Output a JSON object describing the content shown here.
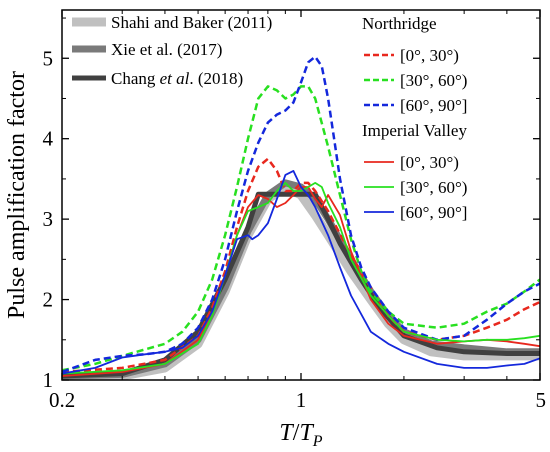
{
  "chart_data": {
    "type": "line",
    "xlabel": "T/T_P",
    "ylabel": "Pulse amplification factor",
    "xscale": "log",
    "xlim": [
      0.2,
      5
    ],
    "ylim": [
      1,
      5.6
    ],
    "xticks": [
      {
        "value": 0.2,
        "label": "0.2"
      },
      {
        "value": 1,
        "label": "1"
      },
      {
        "value": 5,
        "label": "5"
      }
    ],
    "yticks": [
      {
        "value": 1,
        "label": "1"
      },
      {
        "value": 2,
        "label": "2"
      },
      {
        "value": 3,
        "label": "3"
      },
      {
        "value": 4,
        "label": "4"
      },
      {
        "value": 5,
        "label": "5"
      }
    ],
    "grid": false,
    "legend_left": {
      "placement": "top-left",
      "entries": [
        {
          "series": "shahi",
          "text": "Shahi and Baker (2011)"
        },
        {
          "series": "xie",
          "text": "Xie et al. (2017)"
        },
        {
          "series": "chang",
          "text_parts": [
            "Chang ",
            "et al",
            ". (2018)"
          ]
        }
      ]
    },
    "legend_right": {
      "placement": "top-right",
      "groups": [
        {
          "title": "Northridge",
          "entries": [
            {
              "series": "n0",
              "text": "[0°, 30°)"
            },
            {
              "series": "n30",
              "text": "[30°, 60°)"
            },
            {
              "series": "n60",
              "text": "[60°, 90°]"
            }
          ]
        },
        {
          "title": "Imperial Valley",
          "entries": [
            {
              "series": "i0",
              "text": "[0°, 30°)"
            },
            {
              "series": "i30",
              "text": "[30°, 60°)"
            },
            {
              "series": "i60",
              "text": "[60°, 90°]"
            }
          ]
        }
      ]
    },
    "series": [
      {
        "id": "shahi",
        "color": "#c0c0c0",
        "width": 9,
        "dash": "none",
        "x": [
          0.2,
          0.3,
          0.4,
          0.5,
          0.6,
          0.7,
          0.8,
          0.9,
          1.0,
          1.1,
          1.2,
          1.4,
          1.6,
          1.8,
          2.0,
          2.4,
          3.0,
          3.5,
          4.0,
          5.0
        ],
        "y": [
          1.02,
          1.05,
          1.15,
          1.45,
          2.1,
          2.8,
          3.25,
          3.4,
          3.3,
          3.05,
          2.8,
          2.35,
          2.0,
          1.7,
          1.5,
          1.35,
          1.3,
          1.3,
          1.3,
          1.3
        ]
      },
      {
        "id": "xie",
        "color": "#7a7a7a",
        "width": 7,
        "dash": "none",
        "x": [
          0.2,
          0.3,
          0.4,
          0.5,
          0.6,
          0.7,
          0.8,
          0.9,
          1.0,
          1.1,
          1.2,
          1.4,
          1.6,
          1.8,
          2.0,
          2.4,
          3.0,
          4.0,
          5.0
        ],
        "y": [
          1.05,
          1.07,
          1.2,
          1.5,
          2.15,
          2.85,
          3.3,
          3.45,
          3.4,
          3.25,
          3.0,
          2.5,
          2.1,
          1.8,
          1.6,
          1.45,
          1.4,
          1.35,
          1.35
        ]
      },
      {
        "id": "chang",
        "color": "#404040",
        "width": 5,
        "dash": "none",
        "x": [
          0.2,
          0.3,
          0.4,
          0.5,
          0.6,
          0.7,
          0.75,
          0.8,
          0.9,
          1.0,
          1.1,
          1.2,
          1.3,
          1.5,
          1.7,
          2.0,
          2.5,
          3.0,
          4.0,
          5.0
        ],
        "y": [
          1.05,
          1.08,
          1.25,
          1.6,
          2.25,
          2.9,
          3.31,
          3.31,
          3.31,
          3.31,
          3.31,
          3.0,
          2.7,
          2.25,
          1.9,
          1.55,
          1.4,
          1.35,
          1.33,
          1.33
        ]
      },
      {
        "id": "n0",
        "color": "#e8281e",
        "width": 2.5,
        "dash": "7,4",
        "x": [
          0.2,
          0.3,
          0.4,
          0.5,
          0.55,
          0.6,
          0.65,
          0.7,
          0.75,
          0.8,
          0.85,
          0.9,
          0.95,
          1.0,
          1.05,
          1.1,
          1.2,
          1.4,
          1.6,
          1.8,
          2.0,
          2.5,
          3.0,
          3.5,
          4.0,
          4.5,
          5.0
        ],
        "y": [
          1.1,
          1.15,
          1.25,
          1.55,
          1.9,
          2.35,
          2.9,
          3.35,
          3.65,
          3.75,
          3.6,
          3.35,
          3.35,
          3.45,
          3.45,
          3.35,
          3.1,
          2.55,
          2.15,
          1.8,
          1.6,
          1.5,
          1.55,
          1.65,
          1.75,
          1.88,
          1.97
        ]
      },
      {
        "id": "n30",
        "color": "#28e020",
        "width": 2.5,
        "dash": "7,4",
        "x": [
          0.2,
          0.25,
          0.3,
          0.35,
          0.4,
          0.45,
          0.5,
          0.55,
          0.6,
          0.65,
          0.7,
          0.75,
          0.8,
          0.85,
          0.9,
          0.95,
          1.0,
          1.05,
          1.1,
          1.2,
          1.3,
          1.4,
          1.5,
          1.6,
          1.8,
          2.0,
          2.5,
          3.0,
          3.5,
          4.0,
          4.5,
          5.0
        ],
        "y": [
          1.12,
          1.2,
          1.3,
          1.38,
          1.45,
          1.6,
          1.85,
          2.25,
          2.8,
          3.4,
          4.0,
          4.5,
          4.65,
          4.6,
          4.5,
          4.55,
          4.65,
          4.65,
          4.5,
          3.9,
          3.3,
          2.75,
          2.35,
          2.1,
          1.85,
          1.7,
          1.65,
          1.7,
          1.85,
          1.95,
          2.1,
          2.25
        ]
      },
      {
        "id": "n60",
        "color": "#1428dc",
        "width": 2.5,
        "dash": "7,4",
        "x": [
          0.2,
          0.25,
          0.3,
          0.35,
          0.4,
          0.45,
          0.5,
          0.55,
          0.6,
          0.65,
          0.7,
          0.75,
          0.8,
          0.85,
          0.9,
          0.95,
          1.0,
          1.05,
          1.1,
          1.15,
          1.2,
          1.25,
          1.3,
          1.4,
          1.5,
          1.6,
          1.8,
          2.0,
          2.5,
          3.0,
          3.5,
          4.0,
          4.5,
          5.0
        ],
        "y": [
          1.1,
          1.25,
          1.3,
          1.32,
          1.35,
          1.45,
          1.65,
          2.0,
          2.5,
          3.1,
          3.6,
          3.95,
          4.2,
          4.3,
          4.35,
          4.45,
          4.7,
          4.95,
          5.02,
          4.9,
          4.5,
          4.0,
          3.5,
          2.8,
          2.4,
          2.15,
          1.85,
          1.65,
          1.5,
          1.55,
          1.75,
          1.95,
          2.1,
          2.2
        ]
      },
      {
        "id": "i0",
        "color": "#e8281e",
        "width": 1.8,
        "dash": "none",
        "x": [
          0.2,
          0.3,
          0.4,
          0.5,
          0.55,
          0.6,
          0.65,
          0.7,
          0.75,
          0.8,
          0.85,
          0.9,
          0.95,
          1.0,
          1.05,
          1.1,
          1.15,
          1.2,
          1.3,
          1.4,
          1.6,
          1.8,
          2.0,
          2.5,
          3.0,
          3.5,
          4.0,
          4.5,
          5.0
        ],
        "y": [
          1.05,
          1.1,
          1.2,
          1.5,
          1.85,
          2.3,
          2.8,
          3.15,
          3.3,
          3.25,
          3.15,
          3.2,
          3.3,
          3.4,
          3.4,
          3.25,
          3.15,
          3.3,
          3.05,
          2.6,
          2.0,
          1.7,
          1.55,
          1.45,
          1.48,
          1.5,
          1.48,
          1.45,
          1.42
        ]
      },
      {
        "id": "i30",
        "color": "#28e020",
        "width": 1.8,
        "dash": "none",
        "x": [
          0.2,
          0.3,
          0.4,
          0.5,
          0.55,
          0.6,
          0.65,
          0.7,
          0.75,
          0.8,
          0.85,
          0.9,
          0.95,
          1.0,
          1.05,
          1.1,
          1.15,
          1.2,
          1.3,
          1.4,
          1.6,
          1.8,
          2.0,
          2.5,
          3.0,
          3.5,
          4.0,
          4.5,
          5.0
        ],
        "y": [
          1.08,
          1.12,
          1.2,
          1.45,
          1.8,
          2.3,
          2.8,
          3.1,
          3.15,
          3.2,
          3.35,
          3.45,
          3.35,
          3.35,
          3.4,
          3.45,
          3.4,
          3.2,
          2.9,
          2.5,
          2.05,
          1.8,
          1.6,
          1.5,
          1.48,
          1.5,
          1.5,
          1.52,
          1.55
        ]
      },
      {
        "id": "i60",
        "color": "#1428dc",
        "width": 1.8,
        "dash": "none",
        "x": [
          0.2,
          0.25,
          0.3,
          0.35,
          0.4,
          0.45,
          0.5,
          0.55,
          0.6,
          0.65,
          0.7,
          0.72,
          0.75,
          0.8,
          0.85,
          0.9,
          0.95,
          1.0,
          1.05,
          1.1,
          1.2,
          1.3,
          1.4,
          1.6,
          1.8,
          2.0,
          2.5,
          3.0,
          3.5,
          4.0,
          4.5,
          5.0
        ],
        "y": [
          1.08,
          1.15,
          1.28,
          1.32,
          1.35,
          1.4,
          1.55,
          1.85,
          2.3,
          2.75,
          2.8,
          2.75,
          2.8,
          2.95,
          3.25,
          3.55,
          3.6,
          3.4,
          3.3,
          3.15,
          2.8,
          2.4,
          2.05,
          1.6,
          1.45,
          1.35,
          1.2,
          1.15,
          1.15,
          1.18,
          1.2,
          1.27
        ]
      }
    ]
  }
}
